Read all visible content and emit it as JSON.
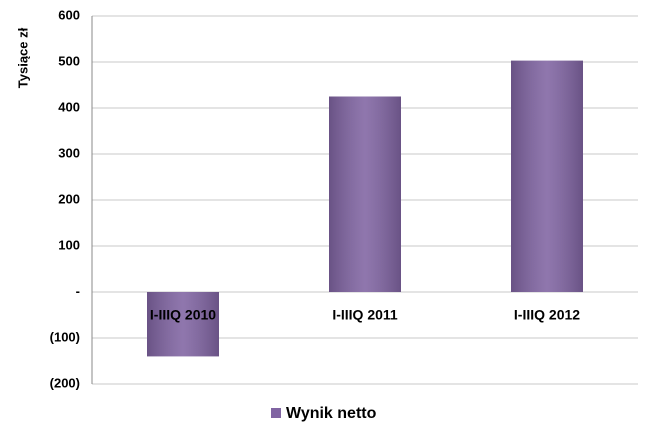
{
  "chart_data": {
    "type": "bar",
    "y_label": "Tysiące zł",
    "categories": [
      "I-IIIQ 2010",
      "I-IIIQ 2011",
      "I-IIIQ 2012"
    ],
    "series": [
      {
        "name": "Wynik netto",
        "color": "#8064a2",
        "values": [
          -140,
          425,
          503
        ]
      }
    ],
    "ylim": [
      -200,
      600
    ],
    "yticks": [
      {
        "value": -200,
        "label": "(200)"
      },
      {
        "value": -100,
        "label": "(100)"
      },
      {
        "value": 0,
        "label": "-"
      },
      100,
      200,
      300,
      400,
      500,
      600
    ],
    "grid": true,
    "legend": "bottom"
  }
}
